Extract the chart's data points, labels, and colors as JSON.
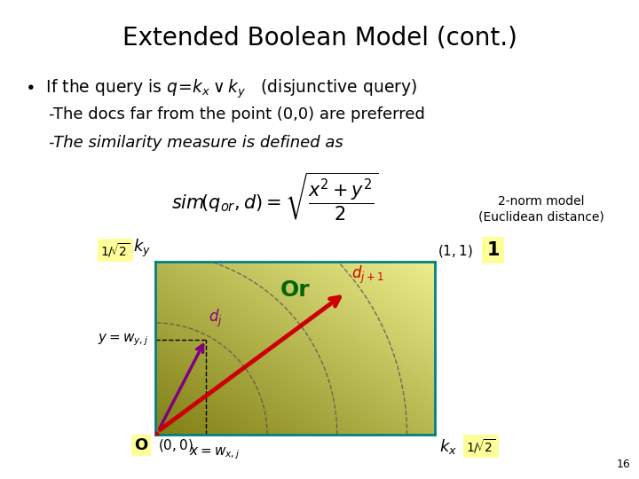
{
  "title": "Extended Boolean Model (cont.)",
  "title_fontsize": 20,
  "background_color": "#ffffff",
  "norm_label1": "2-norm model",
  "norm_label2": "(Euclidean distance)",
  "or_color": "#006600",
  "highlight_yellow": "#ffff99",
  "page_number": "16",
  "box_border_color": "#008080",
  "dj_color": "#800080",
  "djp1_color": "#cc0000",
  "arc_color": "#555555",
  "grad_dark": [
    0.5,
    0.5,
    0.08
  ],
  "grad_light": [
    0.93,
    0.93,
    0.55
  ]
}
